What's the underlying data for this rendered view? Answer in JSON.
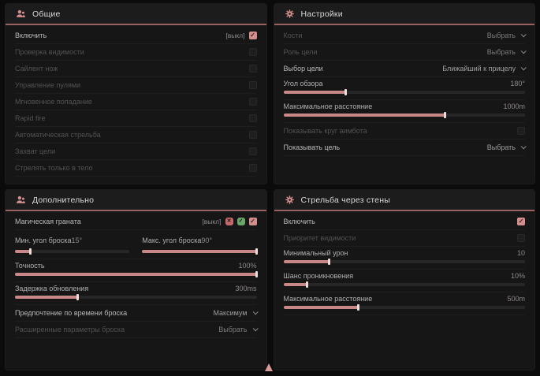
{
  "accent_color": "#d38e8e",
  "header_underline_color": "#9a6262",
  "panels": [
    {
      "id": "general",
      "title": "Общие",
      "icon": "people-icon",
      "rows": [
        {
          "type": "checkbox",
          "label": "Включить",
          "prefix": "[выкл]",
          "checked": true,
          "enabled": true
        },
        {
          "type": "checkbox",
          "label": "Проверка видимости",
          "checked": false,
          "enabled": false
        },
        {
          "type": "checkbox",
          "label": "Сайлент нож",
          "checked": false,
          "enabled": false
        },
        {
          "type": "checkbox",
          "label": "Управление пулями",
          "checked": false,
          "enabled": false
        },
        {
          "type": "checkbox",
          "label": "Мгновенное попадание",
          "checked": false,
          "enabled": false
        },
        {
          "type": "checkbox",
          "label": "Rapid fire",
          "checked": false,
          "enabled": false
        },
        {
          "type": "checkbox",
          "label": "Автоматическая стрельба",
          "checked": false,
          "enabled": false
        },
        {
          "type": "checkbox",
          "label": "Захват цели",
          "checked": false,
          "enabled": false
        },
        {
          "type": "checkbox",
          "label": "Стрелять только в тело",
          "checked": false,
          "enabled": false
        }
      ]
    },
    {
      "id": "settings",
      "title": "Настройки",
      "icon": "gear-icon",
      "rows": [
        {
          "type": "dropdown",
          "label": "Кости",
          "value": "Выбрать",
          "enabled": false
        },
        {
          "type": "dropdown",
          "label": "Роль цели",
          "value": "Выбрать",
          "enabled": false
        },
        {
          "type": "dropdown",
          "label": "Выбор цели",
          "value": "Ближайший к прицелу",
          "enabled": true
        },
        {
          "type": "slider",
          "label": "Угол обзора",
          "value": "180°",
          "fill": 26
        },
        {
          "type": "slider",
          "label": "Максимальное расстояние",
          "value": "1000m",
          "fill": 67
        },
        {
          "type": "checkbox",
          "label": "Показывать круг аимбота",
          "checked": false,
          "enabled": false
        },
        {
          "type": "dropdown",
          "label": "Показывать цель",
          "value": "Выбрать",
          "enabled": true
        }
      ]
    },
    {
      "id": "additional",
      "title": "Дополнительно",
      "icon": "people-icon",
      "rows": [
        {
          "type": "checkbox",
          "label": "Магическая граната",
          "prefix": "[выкл]",
          "badges": [
            "red",
            "green"
          ],
          "checked": true,
          "enabled": true
        },
        {
          "type": "slider-pair",
          "items": [
            {
              "label": "Мин. угол броска",
              "value": "15°",
              "fill": 14
            },
            {
              "label": "Макс. угол броска",
              "value": "90°",
              "fill": 100
            }
          ]
        },
        {
          "type": "slider",
          "label": "Точность",
          "value": "100%",
          "fill": 100
        },
        {
          "type": "slider",
          "label": "Задержка обновления",
          "value": "300ms",
          "fill": 26
        },
        {
          "type": "dropdown",
          "label": "Предпочтение по времени броска",
          "value": "Максимум",
          "enabled": true
        },
        {
          "type": "dropdown",
          "label": "Расширенные параметры броска",
          "value": "Выбрать",
          "enabled": false
        }
      ]
    },
    {
      "id": "wall-shooting",
      "title": "Стрельба через стены",
      "icon": "gear-icon",
      "rows": [
        {
          "type": "checkbox",
          "label": "Включить",
          "checked": true,
          "enabled": true
        },
        {
          "type": "checkbox",
          "label": "Приоритет видимости",
          "checked": false,
          "enabled": false
        },
        {
          "type": "slider",
          "label": "Минимальный урон",
          "value": "10",
          "fill": 19
        },
        {
          "type": "slider",
          "label": "Шанс проникновения",
          "value": "10%",
          "fill": 10
        },
        {
          "type": "slider",
          "label": "Максимальное расстояние",
          "value": "500m",
          "fill": 31
        }
      ]
    }
  ],
  "badge_glyphs": {
    "red": "✕",
    "green": "✓"
  }
}
